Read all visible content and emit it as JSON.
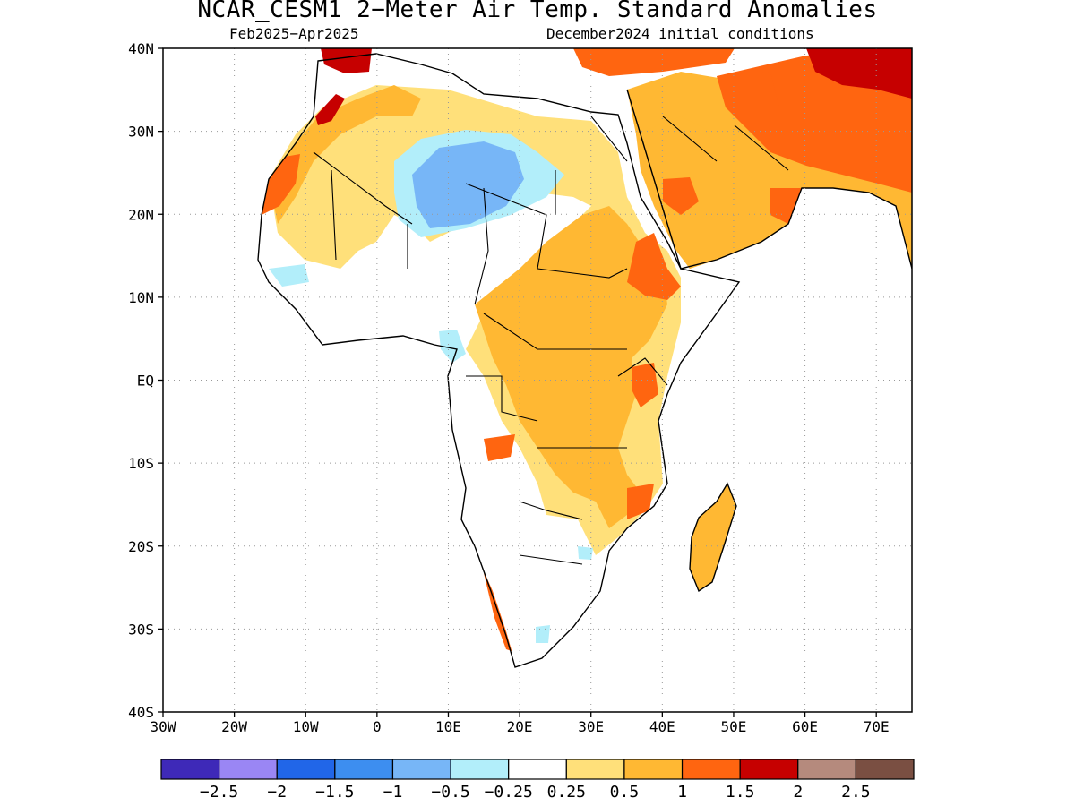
{
  "title": "NCAR_CESM1 2−Meter Air Temp. Standard Anomalies",
  "subtitle_left": "Feb2025−Apr2025",
  "subtitle_right": "December2024 initial conditions",
  "map": {
    "lon_range": [
      -30,
      75
    ],
    "lat_range": [
      -40,
      40
    ],
    "lat_ticks": [
      {
        "v": 40,
        "label": "40N"
      },
      {
        "v": 30,
        "label": "30N"
      },
      {
        "v": 20,
        "label": "20N"
      },
      {
        "v": 10,
        "label": "10N"
      },
      {
        "v": 0,
        "label": "EQ"
      },
      {
        "v": -10,
        "label": "10S"
      },
      {
        "v": -20,
        "label": "20S"
      },
      {
        "v": -30,
        "label": "30S"
      },
      {
        "v": -40,
        "label": "40S"
      }
    ],
    "lon_ticks": [
      {
        "v": -30,
        "label": "30W"
      },
      {
        "v": -20,
        "label": "20W"
      },
      {
        "v": -10,
        "label": "10W"
      },
      {
        "v": 0,
        "label": "0"
      },
      {
        "v": 10,
        "label": "10E"
      },
      {
        "v": 20,
        "label": "20E"
      },
      {
        "v": 30,
        "label": "30E"
      },
      {
        "v": 40,
        "label": "40E"
      },
      {
        "v": 50,
        "label": "50E"
      },
      {
        "v": 60,
        "label": "60E"
      },
      {
        "v": 70,
        "label": "70E"
      }
    ],
    "grid": "dotted"
  },
  "colorbar": {
    "colors": [
      "#3e29b8",
      "#9a86f4",
      "#2166e8",
      "#3d8ef0",
      "#77b6f7",
      "#b2eefa",
      "#ffffff",
      "#ffe07a",
      "#ffb833",
      "#ff6510",
      "#c60000",
      "#b58a7d",
      "#7a4f42"
    ],
    "labels": [
      "−2.5",
      "−2",
      "−1.5",
      "−1",
      "−0.5",
      "−0.25",
      "0.25",
      "0.5",
      "1",
      "1.5",
      "2",
      "2.5"
    ]
  }
}
